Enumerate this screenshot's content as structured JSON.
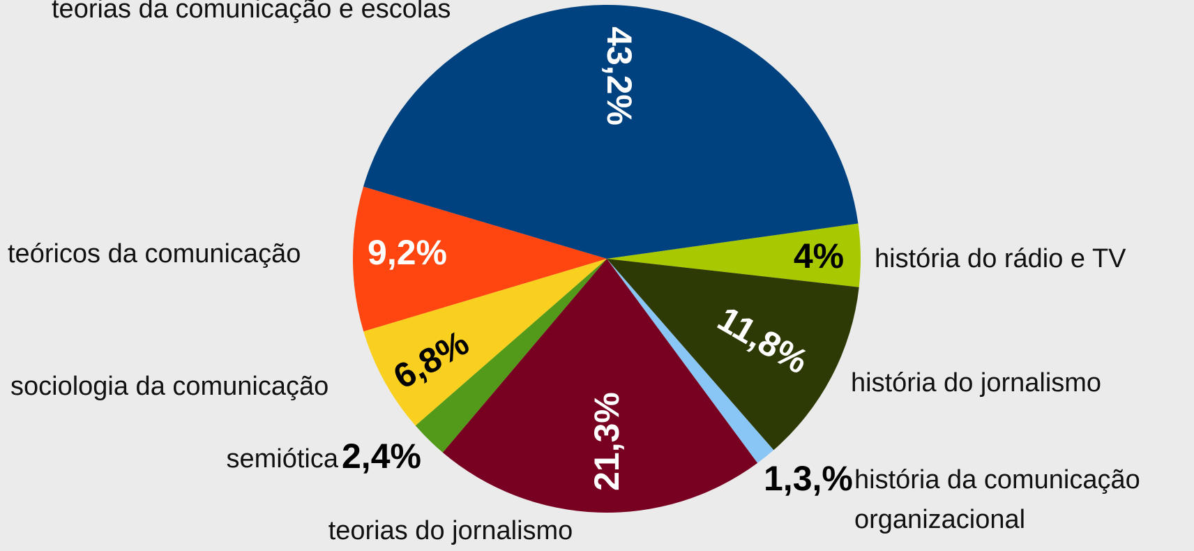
{
  "chart_data": {
    "type": "pie",
    "categories": [
      "teorias da comunicação e escolas",
      "história do rádio e TV",
      "história do jornalismo",
      "história da comunicação organizacional",
      "teorias do jornalismo",
      "semiótica",
      "sociologia da comunicação",
      "teóricos da comunicação"
    ],
    "values": [
      43.2,
      4,
      11.8,
      1.3,
      21.3,
      2.4,
      6.8,
      9.2
    ],
    "value_labels": [
      "43,2%",
      "4%",
      "11,8%",
      "1,3,%",
      "21,3%",
      "2,4%",
      "6,8%",
      "9,2%"
    ],
    "colors": [
      "#00427f",
      "#a8c800",
      "#2e3a06",
      "#8ac6f5",
      "#780020",
      "#549a1a",
      "#fad020",
      "#ff4510"
    ]
  }
}
